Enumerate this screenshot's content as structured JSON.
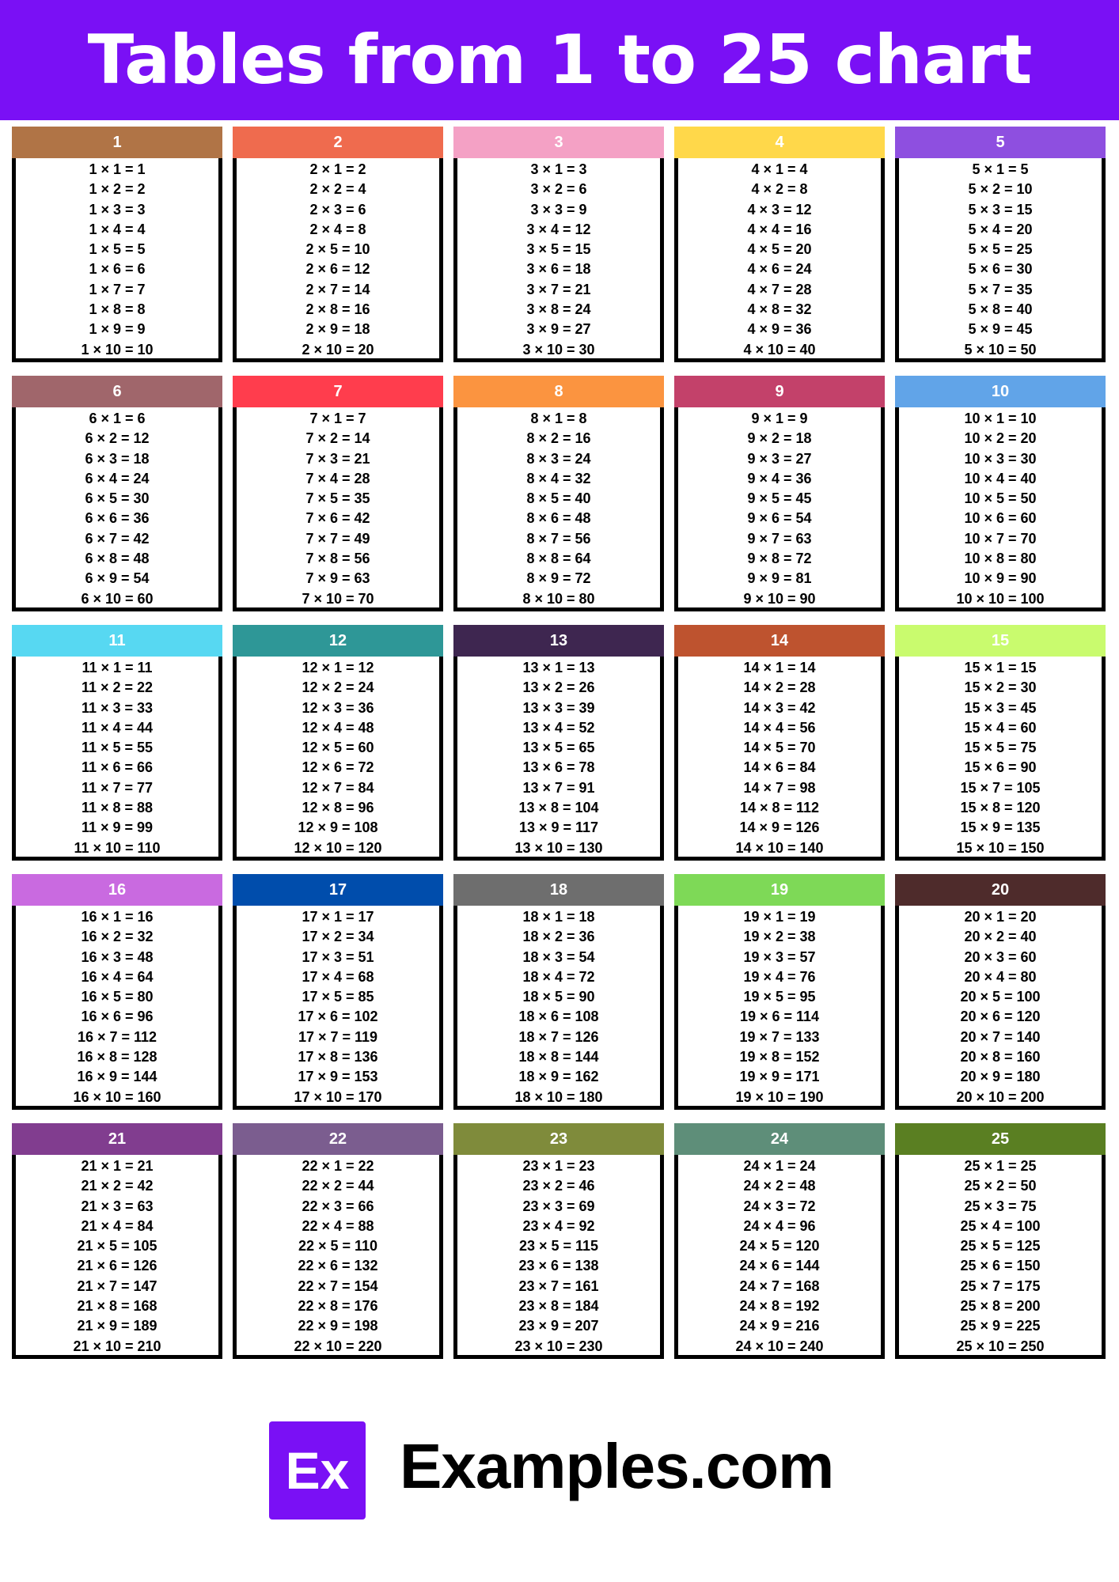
{
  "title": "Tables from 1 to 25 chart",
  "logo": {
    "mark": "Ex",
    "text": "Examples.com",
    "color": "#7a10f5"
  },
  "tables": [
    {
      "n": "1",
      "color": "#b07446",
      "rows": [
        "1 × 1 = 1",
        "1 × 2 = 2",
        "1 × 3 = 3",
        "1 × 4 = 4",
        "1 × 5 = 5",
        "1 × 6 = 6",
        "1 × 7 = 7",
        "1 × 8 = 8",
        "1 × 9 = 9",
        "1 × 10 = 10"
      ]
    },
    {
      "n": "2",
      "color": "#ef6b4e",
      "rows": [
        "2 × 1 = 2",
        "2 × 2 = 4",
        "2 × 3 = 6",
        "2 × 4 = 8",
        "2 × 5 = 10",
        "2 × 6 = 12",
        "2 × 7 = 14",
        "2 × 8 = 16",
        "2 × 9 = 18",
        "2 × 10 = 20"
      ]
    },
    {
      "n": "3",
      "color": "#f4a1c5",
      "rows": [
        "3 × 1 = 3",
        "3 × 2 = 6",
        "3 × 3 = 9",
        "3 × 4 = 12",
        "3 × 5 = 15",
        "3 × 6 = 18",
        "3 × 7 = 21",
        "3 × 8 = 24",
        "3 × 9 = 27",
        "3 × 10 = 30"
      ]
    },
    {
      "n": "4",
      "color": "#ffd84a",
      "rows": [
        "4 × 1 = 4",
        "4 × 2 = 8",
        "4 × 3 = 12",
        "4 × 4 = 16",
        "4 × 5 = 20",
        "4 × 6 = 24",
        "4 × 7 = 28",
        "4 × 8 = 32",
        "4 × 9 = 36",
        "4 × 10 = 40"
      ]
    },
    {
      "n": "5",
      "color": "#8e4fe0",
      "rows": [
        "5 × 1 = 5",
        "5 × 2 = 10",
        "5 × 3 = 15",
        "5 × 4 = 20",
        "5 × 5 = 25",
        "5 × 6 = 30",
        "5 × 7 = 35",
        "5 × 8 = 40",
        "5 × 9 = 45",
        "5 × 10 = 50"
      ]
    },
    {
      "n": "6",
      "color": "#a0666b",
      "rows": [
        "6 × 1 = 6",
        "6 × 2 = 12",
        "6 × 3 = 18",
        "6 × 4 = 24",
        "6 × 5 = 30",
        "6 × 6 = 36",
        "6 × 7 = 42",
        "6 × 8 = 48",
        "6 × 9 = 54",
        "6 × 10 = 60"
      ]
    },
    {
      "n": "7",
      "color": "#ff3d4d",
      "rows": [
        "7 × 1 = 7",
        "7 × 2 = 14",
        "7 × 3 = 21",
        "7 × 4 = 28",
        "7 × 5 = 35",
        "7 × 6 = 42",
        "7 × 7 = 49",
        "7 × 8 = 56",
        "7 × 9 = 63",
        "7 × 10 = 70"
      ]
    },
    {
      "n": "8",
      "color": "#fb9440",
      "rows": [
        "8 × 1 = 8",
        "8 × 2 = 16",
        "8 × 3 = 24",
        "8 × 4 = 32",
        "8 × 5 = 40",
        "8 × 6 = 48",
        "8 × 7 = 56",
        "8 × 8 = 64",
        "8 × 9 = 72",
        "8 × 10 = 80"
      ]
    },
    {
      "n": "9",
      "color": "#c3416a",
      "rows": [
        "9 × 1 = 9",
        "9 × 2 = 18",
        "9 × 3 = 27",
        "9 × 4 = 36",
        "9 × 5 = 45",
        "9 × 6 = 54",
        "9 × 7 = 63",
        "9 × 8 = 72",
        "9 × 9 = 81",
        "9 × 10 = 90"
      ]
    },
    {
      "n": "10",
      "color": "#61a4e8",
      "rows": [
        "10 × 1 = 10",
        "10 × 2 = 20",
        "10 × 3 = 30",
        "10 × 4 = 40",
        "10 × 5 = 50",
        "10 × 6 = 60",
        "10 × 7 = 70",
        "10 × 8 = 80",
        "10 × 9 = 90",
        "10 × 10 = 100"
      ]
    },
    {
      "n": "11",
      "color": "#57d8f2",
      "rows": [
        "11 × 1 = 11",
        "11 × 2 = 22",
        "11 × 3 = 33",
        "11 × 4 = 44",
        "11 × 5 = 55",
        "11 × 6 = 66",
        "11 × 7 = 77",
        "11 × 8 = 88",
        "11 × 9 = 99",
        "11 × 10 = 110"
      ]
    },
    {
      "n": "12",
      "color": "#2e9797",
      "rows": [
        "12 × 1 = 12",
        "12 × 2 = 24",
        "12 × 3 = 36",
        "12 × 4 = 48",
        "12 × 5 = 60",
        "12 × 6 = 72",
        "12 × 7 = 84",
        "12 × 8 = 96",
        "12 × 9 = 108",
        "12 × 10 = 120"
      ]
    },
    {
      "n": "13",
      "color": "#3e2650",
      "rows": [
        "13 × 1 = 13",
        "13 × 2 = 26",
        "13 × 3 = 39",
        "13 × 4 = 52",
        "13 × 5 = 65",
        "13 × 6 = 78",
        "13 × 7 = 91",
        "13 × 8 = 104",
        "13 × 9 = 117",
        "13 × 10 = 130"
      ]
    },
    {
      "n": "14",
      "color": "#be532f",
      "rows": [
        "14 × 1 = 14",
        "14 × 2 = 28",
        "14 × 3 = 42",
        "14 × 4 = 56",
        "14 × 5 = 70",
        "14 × 6 = 84",
        "14 × 7 = 98",
        "14 × 8 = 112",
        "14 × 9 = 126",
        "14 × 10 = 140"
      ]
    },
    {
      "n": "15",
      "color": "#c9fb6e",
      "rows": [
        "15 × 1 = 15",
        "15 × 2 = 30",
        "15 × 3 = 45",
        "15 × 4 = 60",
        "15 × 5 = 75",
        "15 × 6 = 90",
        "15 × 7 = 105",
        "15 × 8 = 120",
        "15 × 9 = 135",
        "15 × 10 = 150"
      ]
    },
    {
      "n": "16",
      "color": "#c96ae0",
      "rows": [
        "16 × 1 = 16",
        "16 × 2 = 32",
        "16 × 3 = 48",
        "16 × 4 = 64",
        "16 × 5 = 80",
        "16 × 6 = 96",
        "16 × 7 = 112",
        "16 × 8 = 128",
        "16 × 9 = 144",
        "16 × 10 = 160"
      ]
    },
    {
      "n": "17",
      "color": "#004dac",
      "rows": [
        "17 × 1 = 17",
        "17 × 2 = 34",
        "17 × 3 = 51",
        "17 × 4 = 68",
        "17 × 5 = 85",
        "17 × 6 = 102",
        "17 × 7 = 119",
        "17 × 8 = 136",
        "17 × 9 = 153",
        "17 × 10 = 170"
      ]
    },
    {
      "n": "18",
      "color": "#6e6e6e",
      "rows": [
        "18 × 1 = 18",
        "18 × 2 = 36",
        "18 × 3 = 54",
        "18 × 4 = 72",
        "18 × 5 = 90",
        "18 × 6 = 108",
        "18 × 7 = 126",
        "18 × 8 = 144",
        "18 × 9 = 162",
        "18 × 10 = 180"
      ]
    },
    {
      "n": "19",
      "color": "#7ed957",
      "rows": [
        "19 × 1 = 19",
        "19 × 2 = 38",
        "19 × 3 = 57",
        "19 × 4 = 76",
        "19 × 5 = 95",
        "19 × 6 = 114",
        "19 × 7 = 133",
        "19 × 8 = 152",
        "19 × 9 = 171",
        "19 × 10 = 190"
      ]
    },
    {
      "n": "20",
      "color": "#4e2b2b",
      "rows": [
        "20 × 1 = 20",
        "20 × 2 = 40",
        "20 × 3 = 60",
        "20 × 4 = 80",
        "20 × 5 = 100",
        "20 × 6 = 120",
        "20 × 7 = 140",
        "20 × 8 = 160",
        "20 × 9 = 180",
        "20 × 10 = 200"
      ]
    },
    {
      "n": "21",
      "color": "#813d8f",
      "rows": [
        "21 × 1 = 21",
        "21 × 2 = 42",
        "21 × 3 = 63",
        "21 × 4 = 84",
        "21 × 5 = 105",
        "21 × 6 = 126",
        "21 × 7 = 147",
        "21 × 8 = 168",
        "21 × 9 = 189",
        "21 × 10 = 210"
      ]
    },
    {
      "n": "22",
      "color": "#7b5d8f",
      "rows": [
        "22 × 1 = 22",
        "22 × 2 = 44",
        "22 × 3 = 66",
        "22 × 4 = 88",
        "22 × 5 = 110",
        "22 × 6 = 132",
        "22 × 7 = 154",
        "22 × 8 = 176",
        "22 × 9 = 198",
        "22 × 10 = 220"
      ]
    },
    {
      "n": "23",
      "color": "#7f8b3b",
      "rows": [
        "23 × 1 = 23",
        "23 × 2 = 46",
        "23 × 3 = 69",
        "23 × 4 = 92",
        "23 × 5 = 115",
        "23 × 6 = 138",
        "23 × 7 = 161",
        "23 × 8 = 184",
        "23 × 9 = 207",
        "23 × 10 = 230"
      ]
    },
    {
      "n": "24",
      "color": "#5e8e79",
      "rows": [
        "24 × 1 = 24",
        "24 × 2 = 48",
        "24 × 3 = 72",
        "24 × 4 = 96",
        "24 × 5 = 120",
        "24 × 6 = 144",
        "24 × 7 = 168",
        "24 × 8 = 192",
        "24 × 9 = 216",
        "24 × 10 = 240"
      ]
    },
    {
      "n": "25",
      "color": "#5a7f22",
      "rows": [
        "25 × 1 = 25",
        "25 × 2 = 50",
        "25 × 3 = 75",
        "25 × 4 = 100",
        "25 × 5 = 125",
        "25 × 6 = 150",
        "25 × 7 = 175",
        "25 × 8 = 200",
        "25 × 9 = 225",
        "25 × 10 = 250"
      ]
    }
  ]
}
